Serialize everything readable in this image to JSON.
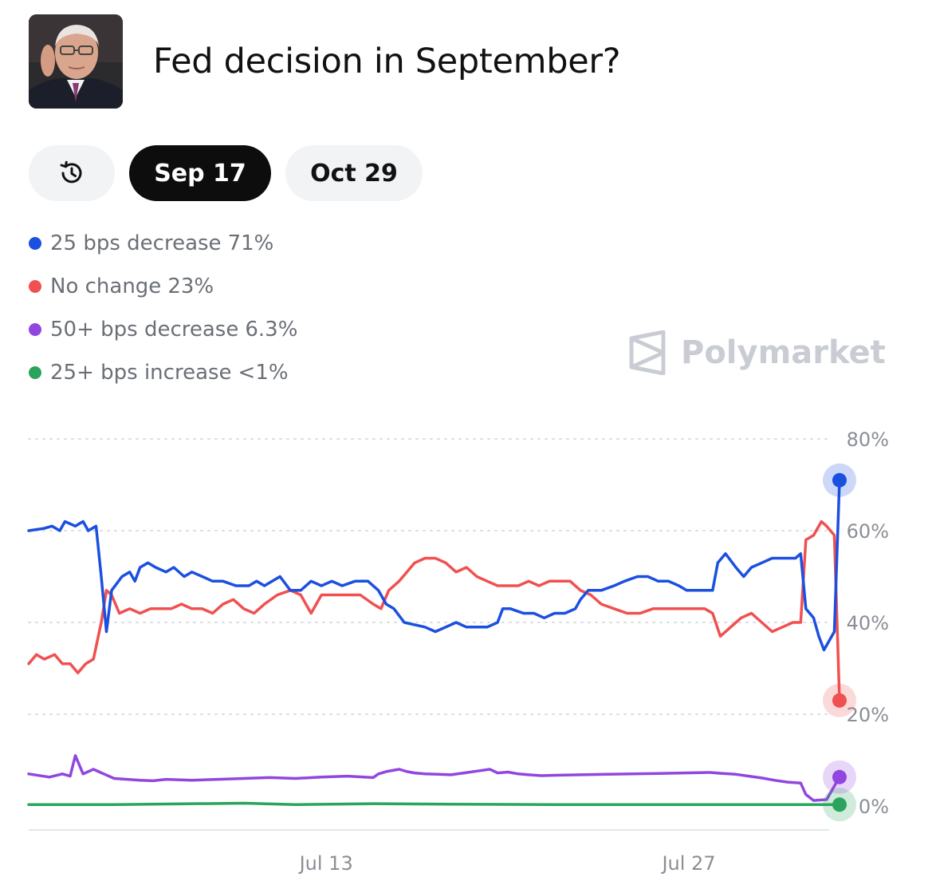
{
  "header": {
    "title": "Fed decision in September?"
  },
  "tabs": [
    {
      "label": "",
      "icon": "history-icon"
    },
    {
      "label": "Sep 17",
      "selected": true
    },
    {
      "label": "Oct 29"
    }
  ],
  "brand": {
    "name": "Polymarket"
  },
  "chart_data": {
    "type": "line",
    "title": "",
    "xlabel": "",
    "ylabel": "",
    "ylim": [
      0,
      80
    ],
    "y_ticks": [
      "80%",
      "60%",
      "40%",
      "20%",
      "0%"
    ],
    "x_ticks": [
      {
        "label": "Jul 13",
        "day": 13
      },
      {
        "label": "Jul 27",
        "day": 27
      }
    ],
    "xlim_day": [
      1.7,
      32.6
    ],
    "grid": true,
    "series": [
      {
        "name": "25 bps decrease",
        "value_label": "71%",
        "color": "#1b4fe0",
        "points": [
          [
            1.7,
            60
          ],
          [
            2.3,
            60.5
          ],
          [
            2.6,
            61
          ],
          [
            2.9,
            60
          ],
          [
            3.1,
            62
          ],
          [
            3.5,
            61
          ],
          [
            3.8,
            62
          ],
          [
            4,
            60
          ],
          [
            4.3,
            61
          ],
          [
            4.5,
            50
          ],
          [
            4.7,
            38
          ],
          [
            4.9,
            47
          ],
          [
            5.3,
            50
          ],
          [
            5.6,
            51
          ],
          [
            5.8,
            49
          ],
          [
            6,
            52
          ],
          [
            6.3,
            53
          ],
          [
            6.6,
            52
          ],
          [
            7,
            51
          ],
          [
            7.3,
            52
          ],
          [
            7.7,
            50
          ],
          [
            8,
            51
          ],
          [
            8.4,
            50
          ],
          [
            8.8,
            49
          ],
          [
            9.2,
            49
          ],
          [
            9.7,
            48
          ],
          [
            10.2,
            48
          ],
          [
            10.5,
            49
          ],
          [
            10.8,
            48
          ],
          [
            11.4,
            50
          ],
          [
            11.8,
            47
          ],
          [
            12.2,
            47
          ],
          [
            12.6,
            49
          ],
          [
            13,
            48
          ],
          [
            13.4,
            49
          ],
          [
            13.8,
            48
          ],
          [
            14.3,
            49
          ],
          [
            14.8,
            49
          ],
          [
            15.2,
            47
          ],
          [
            15.5,
            44
          ],
          [
            15.8,
            43
          ],
          [
            16.2,
            40
          ],
          [
            16.6,
            39.5
          ],
          [
            17,
            39
          ],
          [
            17.4,
            38
          ],
          [
            17.8,
            39
          ],
          [
            18.2,
            40
          ],
          [
            18.6,
            39
          ],
          [
            19,
            39
          ],
          [
            19.4,
            39
          ],
          [
            19.8,
            40
          ],
          [
            20,
            43
          ],
          [
            20.3,
            43
          ],
          [
            20.8,
            42
          ],
          [
            21.2,
            42
          ],
          [
            21.6,
            41
          ],
          [
            22,
            42
          ],
          [
            22.4,
            42
          ],
          [
            22.8,
            43
          ],
          [
            23,
            45
          ],
          [
            23.3,
            47
          ],
          [
            23.8,
            47
          ],
          [
            24.3,
            48
          ],
          [
            24.7,
            49
          ],
          [
            25.2,
            50
          ],
          [
            25.6,
            50
          ],
          [
            26,
            49
          ],
          [
            26.4,
            49
          ],
          [
            26.8,
            48
          ],
          [
            27.1,
            47
          ],
          [
            27.6,
            47
          ],
          [
            28.1,
            47
          ],
          [
            28.3,
            53
          ],
          [
            28.6,
            55
          ],
          [
            29,
            52
          ],
          [
            29.3,
            50
          ],
          [
            29.6,
            52
          ],
          [
            30,
            53
          ],
          [
            30.4,
            54
          ],
          [
            30.8,
            54
          ],
          [
            31.3,
            54
          ],
          [
            31.5,
            55
          ],
          [
            31.7,
            43
          ],
          [
            32,
            41
          ],
          [
            32.2,
            37
          ],
          [
            32.4,
            34
          ],
          [
            32.6,
            36
          ],
          [
            32.8,
            38
          ],
          [
            33,
            71
          ]
        ]
      },
      {
        "name": "No change",
        "value_label": "23%",
        "color": "#f05050",
        "points": [
          [
            1.7,
            31
          ],
          [
            2,
            33
          ],
          [
            2.3,
            32
          ],
          [
            2.7,
            33
          ],
          [
            3,
            31
          ],
          [
            3.3,
            31
          ],
          [
            3.6,
            29
          ],
          [
            3.9,
            31
          ],
          [
            4.2,
            32
          ],
          [
            4.5,
            40
          ],
          [
            4.7,
            47
          ],
          [
            4.9,
            46
          ],
          [
            5.2,
            42
          ],
          [
            5.6,
            43
          ],
          [
            6,
            42
          ],
          [
            6.4,
            43
          ],
          [
            6.8,
            43
          ],
          [
            7.2,
            43
          ],
          [
            7.6,
            44
          ],
          [
            8,
            43
          ],
          [
            8.4,
            43
          ],
          [
            8.8,
            42
          ],
          [
            9.2,
            44
          ],
          [
            9.6,
            45
          ],
          [
            10,
            43
          ],
          [
            10.4,
            42
          ],
          [
            10.8,
            44
          ],
          [
            11.3,
            46
          ],
          [
            11.8,
            47
          ],
          [
            12.2,
            46
          ],
          [
            12.6,
            42
          ],
          [
            13,
            46
          ],
          [
            13.5,
            46
          ],
          [
            14,
            46
          ],
          [
            14.5,
            46
          ],
          [
            15,
            44
          ],
          [
            15.3,
            43
          ],
          [
            15.6,
            47
          ],
          [
            16,
            49
          ],
          [
            16.3,
            51
          ],
          [
            16.6,
            53
          ],
          [
            17,
            54
          ],
          [
            17.4,
            54
          ],
          [
            17.8,
            53
          ],
          [
            18.2,
            51
          ],
          [
            18.6,
            52
          ],
          [
            19,
            50
          ],
          [
            19.4,
            49
          ],
          [
            19.8,
            48
          ],
          [
            20.2,
            48
          ],
          [
            20.6,
            48
          ],
          [
            21,
            49
          ],
          [
            21.4,
            48
          ],
          [
            21.8,
            49
          ],
          [
            22.2,
            49
          ],
          [
            22.6,
            49
          ],
          [
            23,
            47
          ],
          [
            23.4,
            46
          ],
          [
            23.8,
            44
          ],
          [
            24.3,
            43
          ],
          [
            24.8,
            42
          ],
          [
            25.3,
            42
          ],
          [
            25.8,
            43
          ],
          [
            26.3,
            43
          ],
          [
            26.8,
            43
          ],
          [
            27.3,
            43
          ],
          [
            27.8,
            43
          ],
          [
            28.1,
            42
          ],
          [
            28.4,
            37
          ],
          [
            28.8,
            39
          ],
          [
            29.2,
            41
          ],
          [
            29.6,
            42
          ],
          [
            30,
            40
          ],
          [
            30.4,
            38
          ],
          [
            30.8,
            39
          ],
          [
            31.2,
            40
          ],
          [
            31.5,
            40
          ],
          [
            31.7,
            58
          ],
          [
            32,
            59
          ],
          [
            32.3,
            62
          ],
          [
            32.5,
            61
          ],
          [
            32.8,
            59
          ],
          [
            33,
            23
          ]
        ]
      },
      {
        "name": "50+ bps decrease",
        "value_label": "6.3%",
        "color": "#9146e0",
        "points": [
          [
            1.7,
            7
          ],
          [
            2.5,
            6.3
          ],
          [
            3,
            7
          ],
          [
            3.3,
            6.5
          ],
          [
            3.5,
            11
          ],
          [
            3.8,
            7
          ],
          [
            4.2,
            8
          ],
          [
            4.6,
            7
          ],
          [
            5,
            6
          ],
          [
            5.5,
            5.8
          ],
          [
            6,
            5.6
          ],
          [
            6.5,
            5.5
          ],
          [
            7,
            5.8
          ],
          [
            8,
            5.6
          ],
          [
            9,
            5.8
          ],
          [
            10,
            6
          ],
          [
            11,
            6.2
          ],
          [
            12,
            6
          ],
          [
            13,
            6.3
          ],
          [
            14,
            6.5
          ],
          [
            15,
            6.2
          ],
          [
            15.2,
            7
          ],
          [
            15.5,
            7.5
          ],
          [
            15.8,
            7.8
          ],
          [
            16,
            8
          ],
          [
            16.3,
            7.5
          ],
          [
            16.6,
            7.2
          ],
          [
            17,
            7
          ],
          [
            17.5,
            6.9
          ],
          [
            18,
            6.8
          ],
          [
            18.5,
            7.2
          ],
          [
            19,
            7.6
          ],
          [
            19.5,
            8
          ],
          [
            19.8,
            7.2
          ],
          [
            20.2,
            7.4
          ],
          [
            20.6,
            7
          ],
          [
            21,
            6.8
          ],
          [
            21.5,
            6.6
          ],
          [
            22,
            6.7
          ],
          [
            23,
            6.8
          ],
          [
            24,
            6.9
          ],
          [
            25,
            7
          ],
          [
            26,
            7.1
          ],
          [
            27,
            7.2
          ],
          [
            28,
            7.3
          ],
          [
            28.5,
            7.1
          ],
          [
            29,
            6.9
          ],
          [
            29.5,
            6.5
          ],
          [
            30,
            6.1
          ],
          [
            30.5,
            5.6
          ],
          [
            31,
            5.2
          ],
          [
            31.5,
            5
          ],
          [
            31.7,
            2.5
          ],
          [
            32,
            1.2
          ],
          [
            32.5,
            1.4
          ],
          [
            33,
            6.3
          ]
        ]
      },
      {
        "name": "25+ bps increase",
        "value_label": "<1%",
        "color": "#2aa45c",
        "points": [
          [
            1.7,
            0.3
          ],
          [
            4,
            0.3
          ],
          [
            5,
            0.3
          ],
          [
            10,
            0.6
          ],
          [
            12,
            0.3
          ],
          [
            15,
            0.5
          ],
          [
            18,
            0.4
          ],
          [
            22,
            0.3
          ],
          [
            27,
            0.3
          ],
          [
            30,
            0.3
          ],
          [
            33,
            0.3
          ]
        ]
      }
    ]
  }
}
